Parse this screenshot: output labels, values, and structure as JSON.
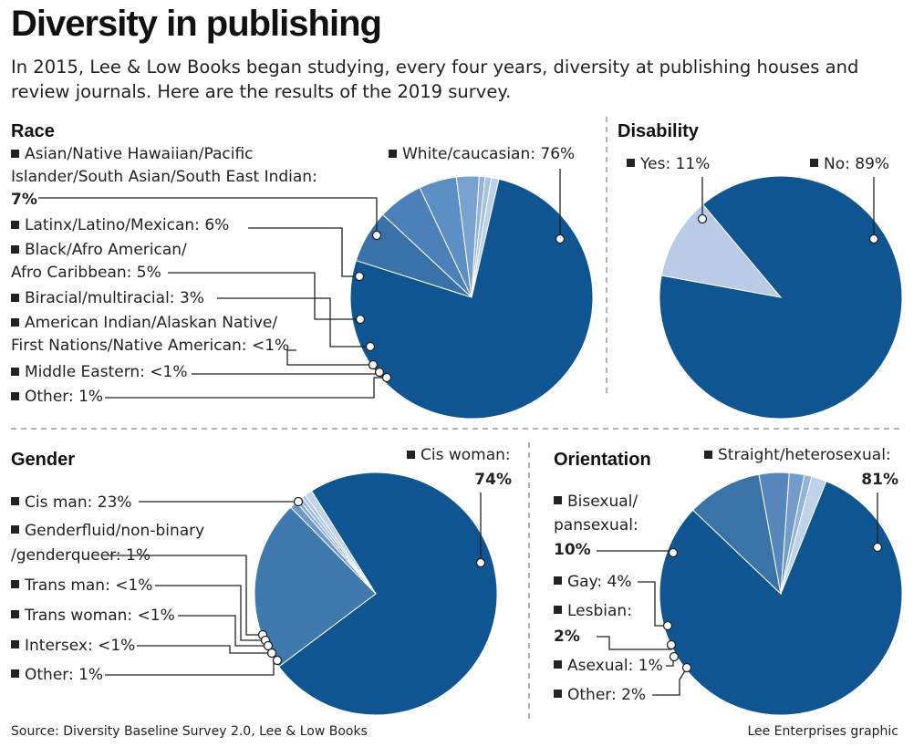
{
  "title": "Diversity in publishing",
  "subtitle": "In 2015, Lee & Low Books began studying, every four years, diversity at publishing houses and review journals. Here are the results of the 2019 survey.",
  "source": "Source: Diversity Baseline Survey 2.0, Lee & Low Books",
  "credit": "Lee Enterprises graphic",
  "colors": {
    "dark": "#0f5592",
    "mid": "#3f79ad",
    "light": "#b9cbe6"
  },
  "chart_data": [
    {
      "type": "pie",
      "title": "Race",
      "series": [
        {
          "name": "White/caucasian",
          "value": 76,
          "label": "76%"
        },
        {
          "name": "Asian/Native Hawaiian/Pacific Islander/South Asian/South East Indian",
          "value": 7,
          "label": "7%"
        },
        {
          "name": "Latinx/Latino/Mexican",
          "value": 6,
          "label": "6%"
        },
        {
          "name": "Black/Afro American/Afro Caribbean",
          "value": 5,
          "label": "5%"
        },
        {
          "name": "Biracial/multiracial",
          "value": 3,
          "label": "3%"
        },
        {
          "name": "American Indian/Alaskan Native/First Nations/Native American",
          "value": 0.8,
          "label": "<1%"
        },
        {
          "name": "Middle Eastern",
          "value": 0.8,
          "label": "<1%"
        },
        {
          "name": "Other",
          "value": 1,
          "label": "1%"
        }
      ],
      "label_lines": [
        {
          "line": [
            "Asian/Native Hawaiian/Pacific",
            "Islander/South Asian/South East Indian:"
          ],
          "pct": "7%"
        },
        {
          "line": [
            "Latinx/Latino/Mexican: "
          ],
          "pct": "6%"
        },
        {
          "line": [
            "Black/Afro American/",
            "Afro Caribbean: "
          ],
          "pct": "5%"
        },
        {
          "line": [
            "Biracial/multiracial: "
          ],
          "pct": "3%"
        },
        {
          "line": [
            "American Indian/Alaskan Native/",
            "First Nations/Native American: "
          ],
          "pct": "<1%"
        },
        {
          "line": [
            "Middle Eastern: "
          ],
          "pct": "<1%"
        },
        {
          "line": [
            "Other: "
          ],
          "pct": "1%"
        }
      ],
      "main_label": {
        "text": "White/caucasian: ",
        "pct": "76%"
      }
    },
    {
      "type": "pie",
      "title": "Disability",
      "series": [
        {
          "name": "No",
          "value": 89,
          "label": "89%"
        },
        {
          "name": "Yes",
          "value": 11,
          "label": "11%"
        }
      ],
      "labels": {
        "yes": "Yes: ",
        "yes_pct": "11%",
        "no": "No: ",
        "no_pct": "89%"
      }
    },
    {
      "type": "pie",
      "title": "Gender",
      "series": [
        {
          "name": "Cis woman",
          "value": 74,
          "label": "74%"
        },
        {
          "name": "Cis man",
          "value": 23,
          "label": "23%"
        },
        {
          "name": "Genderfluid/non-binary/genderqueer",
          "value": 1,
          "label": "1%"
        },
        {
          "name": "Trans man",
          "value": 0.5,
          "label": "<1%"
        },
        {
          "name": "Trans woman",
          "value": 0.5,
          "label": "<1%"
        },
        {
          "name": "Intersex",
          "value": 0.5,
          "label": "<1%"
        },
        {
          "name": "Other",
          "value": 1,
          "label": "1%"
        }
      ],
      "label_lines": [
        {
          "line": [
            "Cis man: "
          ],
          "pct": "23%"
        },
        {
          "line": [
            "Genderfluid/non-binary",
            "/genderqueer: "
          ],
          "pct": "1%"
        },
        {
          "line": [
            "Trans man: "
          ],
          "pct": "<1%"
        },
        {
          "line": [
            "Trans woman: "
          ],
          "pct": "<1%"
        },
        {
          "line": [
            "Intersex: "
          ],
          "pct": "<1%"
        },
        {
          "line": [
            "Other: "
          ],
          "pct": "1%"
        }
      ],
      "main_label": {
        "text": "Cis woman:",
        "pct": "74%"
      }
    },
    {
      "type": "pie",
      "title": "Orientation",
      "series": [
        {
          "name": "Straight/heterosexual",
          "value": 81,
          "label": "81%"
        },
        {
          "name": "Bisexual/pansexual",
          "value": 10,
          "label": "10%"
        },
        {
          "name": "Gay",
          "value": 4,
          "label": "4%"
        },
        {
          "name": "Lesbian",
          "value": 2,
          "label": "2%"
        },
        {
          "name": "Asexual",
          "value": 1,
          "label": "1%"
        },
        {
          "name": "Other",
          "value": 2,
          "label": "2%"
        }
      ],
      "label_lines": [
        {
          "line": [
            "Bisexual/",
            "pansexual:"
          ],
          "pct": "10%"
        },
        {
          "line": [
            "Gay: "
          ],
          "pct": "4%"
        },
        {
          "line": [
            "Lesbian:"
          ],
          "pct": "2%"
        },
        {
          "line": [
            "Asexual: "
          ],
          "pct": "1%"
        },
        {
          "line": [
            "Other: "
          ],
          "pct": "2%"
        }
      ],
      "main_label": {
        "text": "Straight/heterosexual:",
        "pct": "81%"
      }
    }
  ]
}
